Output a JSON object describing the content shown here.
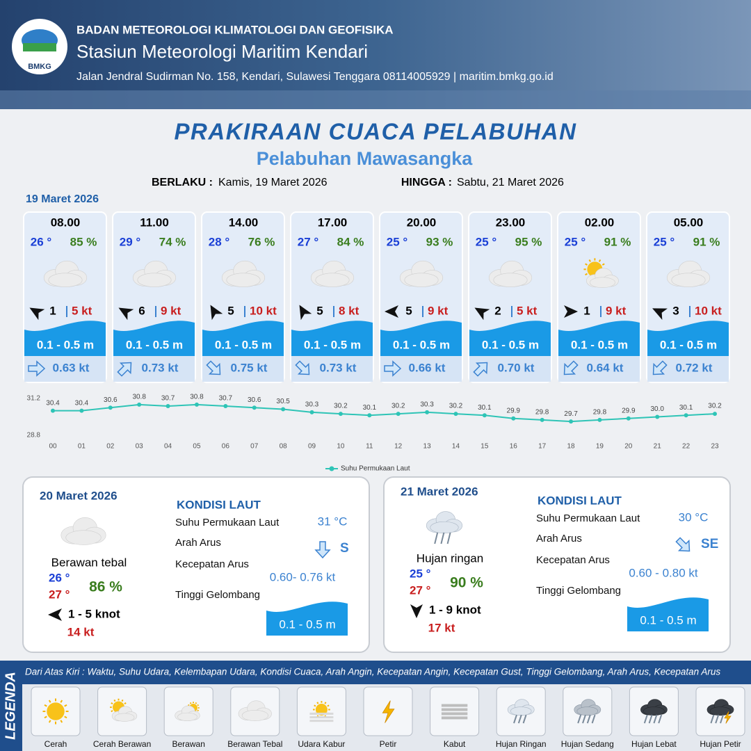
{
  "header": {
    "logo": "BMKG",
    "org": "BADAN METEOROLOGI KLIMATOLOGI DAN GEOFISIKA",
    "station": "Stasiun Meteorologi Maritim Kendari",
    "address": "Jalan Jendral Sudirman No. 158, Kendari, Sulawesi Tenggara  08114005929 | maritim.bmkg.go.id"
  },
  "title": "PRAKIRAAN CUACA PELABUHAN",
  "subtitle": "Pelabuhan Mawasangka",
  "validity": {
    "from_label": "BERLAKU :",
    "from": "Kamis, 19 Maret 2026",
    "to_label": "HINGGA :",
    "to": "Sabtu, 21 Maret 2026"
  },
  "day1": {
    "date": "19 Maret 2026",
    "forecasts": [
      {
        "time": "08.00",
        "temp": "26 °",
        "humidity": "85 %",
        "wind": "1",
        "gust": "5 kt",
        "wave": "0.1 - 0.5 m",
        "current": "0.63 kt"
      },
      {
        "time": "11.00",
        "temp": "29 °",
        "humidity": "74 %",
        "wind": "6",
        "gust": "9 kt",
        "wave": "0.1 - 0.5 m",
        "current": "0.73 kt"
      },
      {
        "time": "14.00",
        "temp": "28 °",
        "humidity": "76 %",
        "wind": "5",
        "gust": "10 kt",
        "wave": "0.1 - 0.5 m",
        "current": "0.75 kt"
      },
      {
        "time": "17.00",
        "temp": "27 °",
        "humidity": "84 %",
        "wind": "5",
        "gust": "8 kt",
        "wave": "0.1 - 0.5 m",
        "current": "0.73 kt"
      },
      {
        "time": "20.00",
        "temp": "25 °",
        "humidity": "93 %",
        "wind": "5",
        "gust": "9 kt",
        "wave": "0.1 - 0.5 m",
        "current": "0.66 kt"
      },
      {
        "time": "23.00",
        "temp": "25 °",
        "humidity": "95 %",
        "wind": "2",
        "gust": "5 kt",
        "wave": "0.1 - 0.5 m",
        "current": "0.70 kt"
      },
      {
        "time": "02.00",
        "temp": "25 °",
        "humidity": "91 %",
        "wind": "1",
        "gust": "9 kt",
        "wave": "0.1 - 0.5 m",
        "current": "0.64 kt"
      },
      {
        "time": "05.00",
        "temp": "25 °",
        "humidity": "91 %",
        "wind": "3",
        "gust": "10 kt",
        "wave": "0.1 - 0.5 m",
        "current": "0.72 kt"
      }
    ]
  },
  "chart_data": {
    "type": "line",
    "categories": [
      "00",
      "01",
      "02",
      "03",
      "04",
      "05",
      "06",
      "07",
      "08",
      "09",
      "10",
      "11",
      "12",
      "13",
      "14",
      "15",
      "16",
      "17",
      "18",
      "19",
      "20",
      "21",
      "22",
      "23"
    ],
    "series": [
      {
        "name": "Suhu Permukaan Laut",
        "color": "#2ec4b6",
        "values": [
          30.4,
          30.4,
          30.6,
          30.8,
          30.7,
          30.8,
          30.7,
          30.6,
          30.5,
          30.3,
          30.2,
          30.1,
          30.2,
          30.3,
          30.2,
          30.1,
          29.9,
          29.8,
          29.7,
          29.8,
          29.9,
          30.0,
          30.1,
          30.2
        ],
        "value_labels": [
          "30.4",
          "30.4",
          "30.6",
          "30.8",
          "30.7",
          "30.8",
          "30.7",
          "30.6",
          "30.5",
          "30.3",
          "30.2",
          "30.1",
          "30.2",
          "30.3",
          "30.2",
          "30.1",
          "29.9",
          "29.8",
          "29.7",
          "29.8",
          "29.9",
          "30.0",
          "30.1",
          "30.2"
        ]
      }
    ],
    "ylim": [
      28.8,
      31.2
    ],
    "yticks": [
      28.8,
      31.2
    ],
    "grid": false,
    "legend": "bottom"
  },
  "days": [
    {
      "date": "20 Maret 2026",
      "condition": "Berawan tebal",
      "temp_min": "26 °",
      "temp_max": "27 °",
      "humidity": "86 %",
      "wind": "1 - 5 knot",
      "gust": "14 kt",
      "sea_title": "KONDISI LAUT",
      "sst_label": "Suhu Permukaan Laut",
      "sst": "31 °C",
      "current_dir_label": "Arah Arus",
      "current_dir": "S",
      "current_speed_label": "Kecepatan Arus",
      "current_speed": "0.60- 0.76 kt",
      "wave_label": "Tinggi Gelombang",
      "wave": "0.1 - 0.5 m"
    },
    {
      "date": "21 Maret 2026",
      "condition": "Hujan ringan",
      "temp_min": "25 °",
      "temp_max": "27 °",
      "humidity": "90 %",
      "wind": "1 - 9 knot",
      "gust": "17 kt",
      "sea_title": "KONDISI LAUT",
      "sst_label": "Suhu Permukaan Laut",
      "sst": "30 °C",
      "current_dir_label": "Arah Arus",
      "current_dir": "SE",
      "current_speed_label": "Kecepatan Arus",
      "current_speed": "0.60 - 0.80 kt",
      "wave_label": "Tinggi Gelombang",
      "wave": "0.1 - 0.5 m"
    }
  ],
  "legend": {
    "title": "LEGENDA",
    "description": "Dari Atas Kiri : Waktu, Suhu Udara, Kelembapan Udara, Kondisi Cuaca, Arah Angin, Kecepatan Angin, Kecepatan Gust, Tinggi Gelombang, Arah Arus, Kecepatan Arus",
    "items": [
      "Cerah",
      "Cerah Berawan",
      "Berawan",
      "Berawan Tebal",
      "Udara Kabur",
      "Petir",
      "Kabut",
      "Hujan Ringan",
      "Hujan Sedang",
      "Hujan Lebat",
      "Hujan Petir"
    ]
  }
}
